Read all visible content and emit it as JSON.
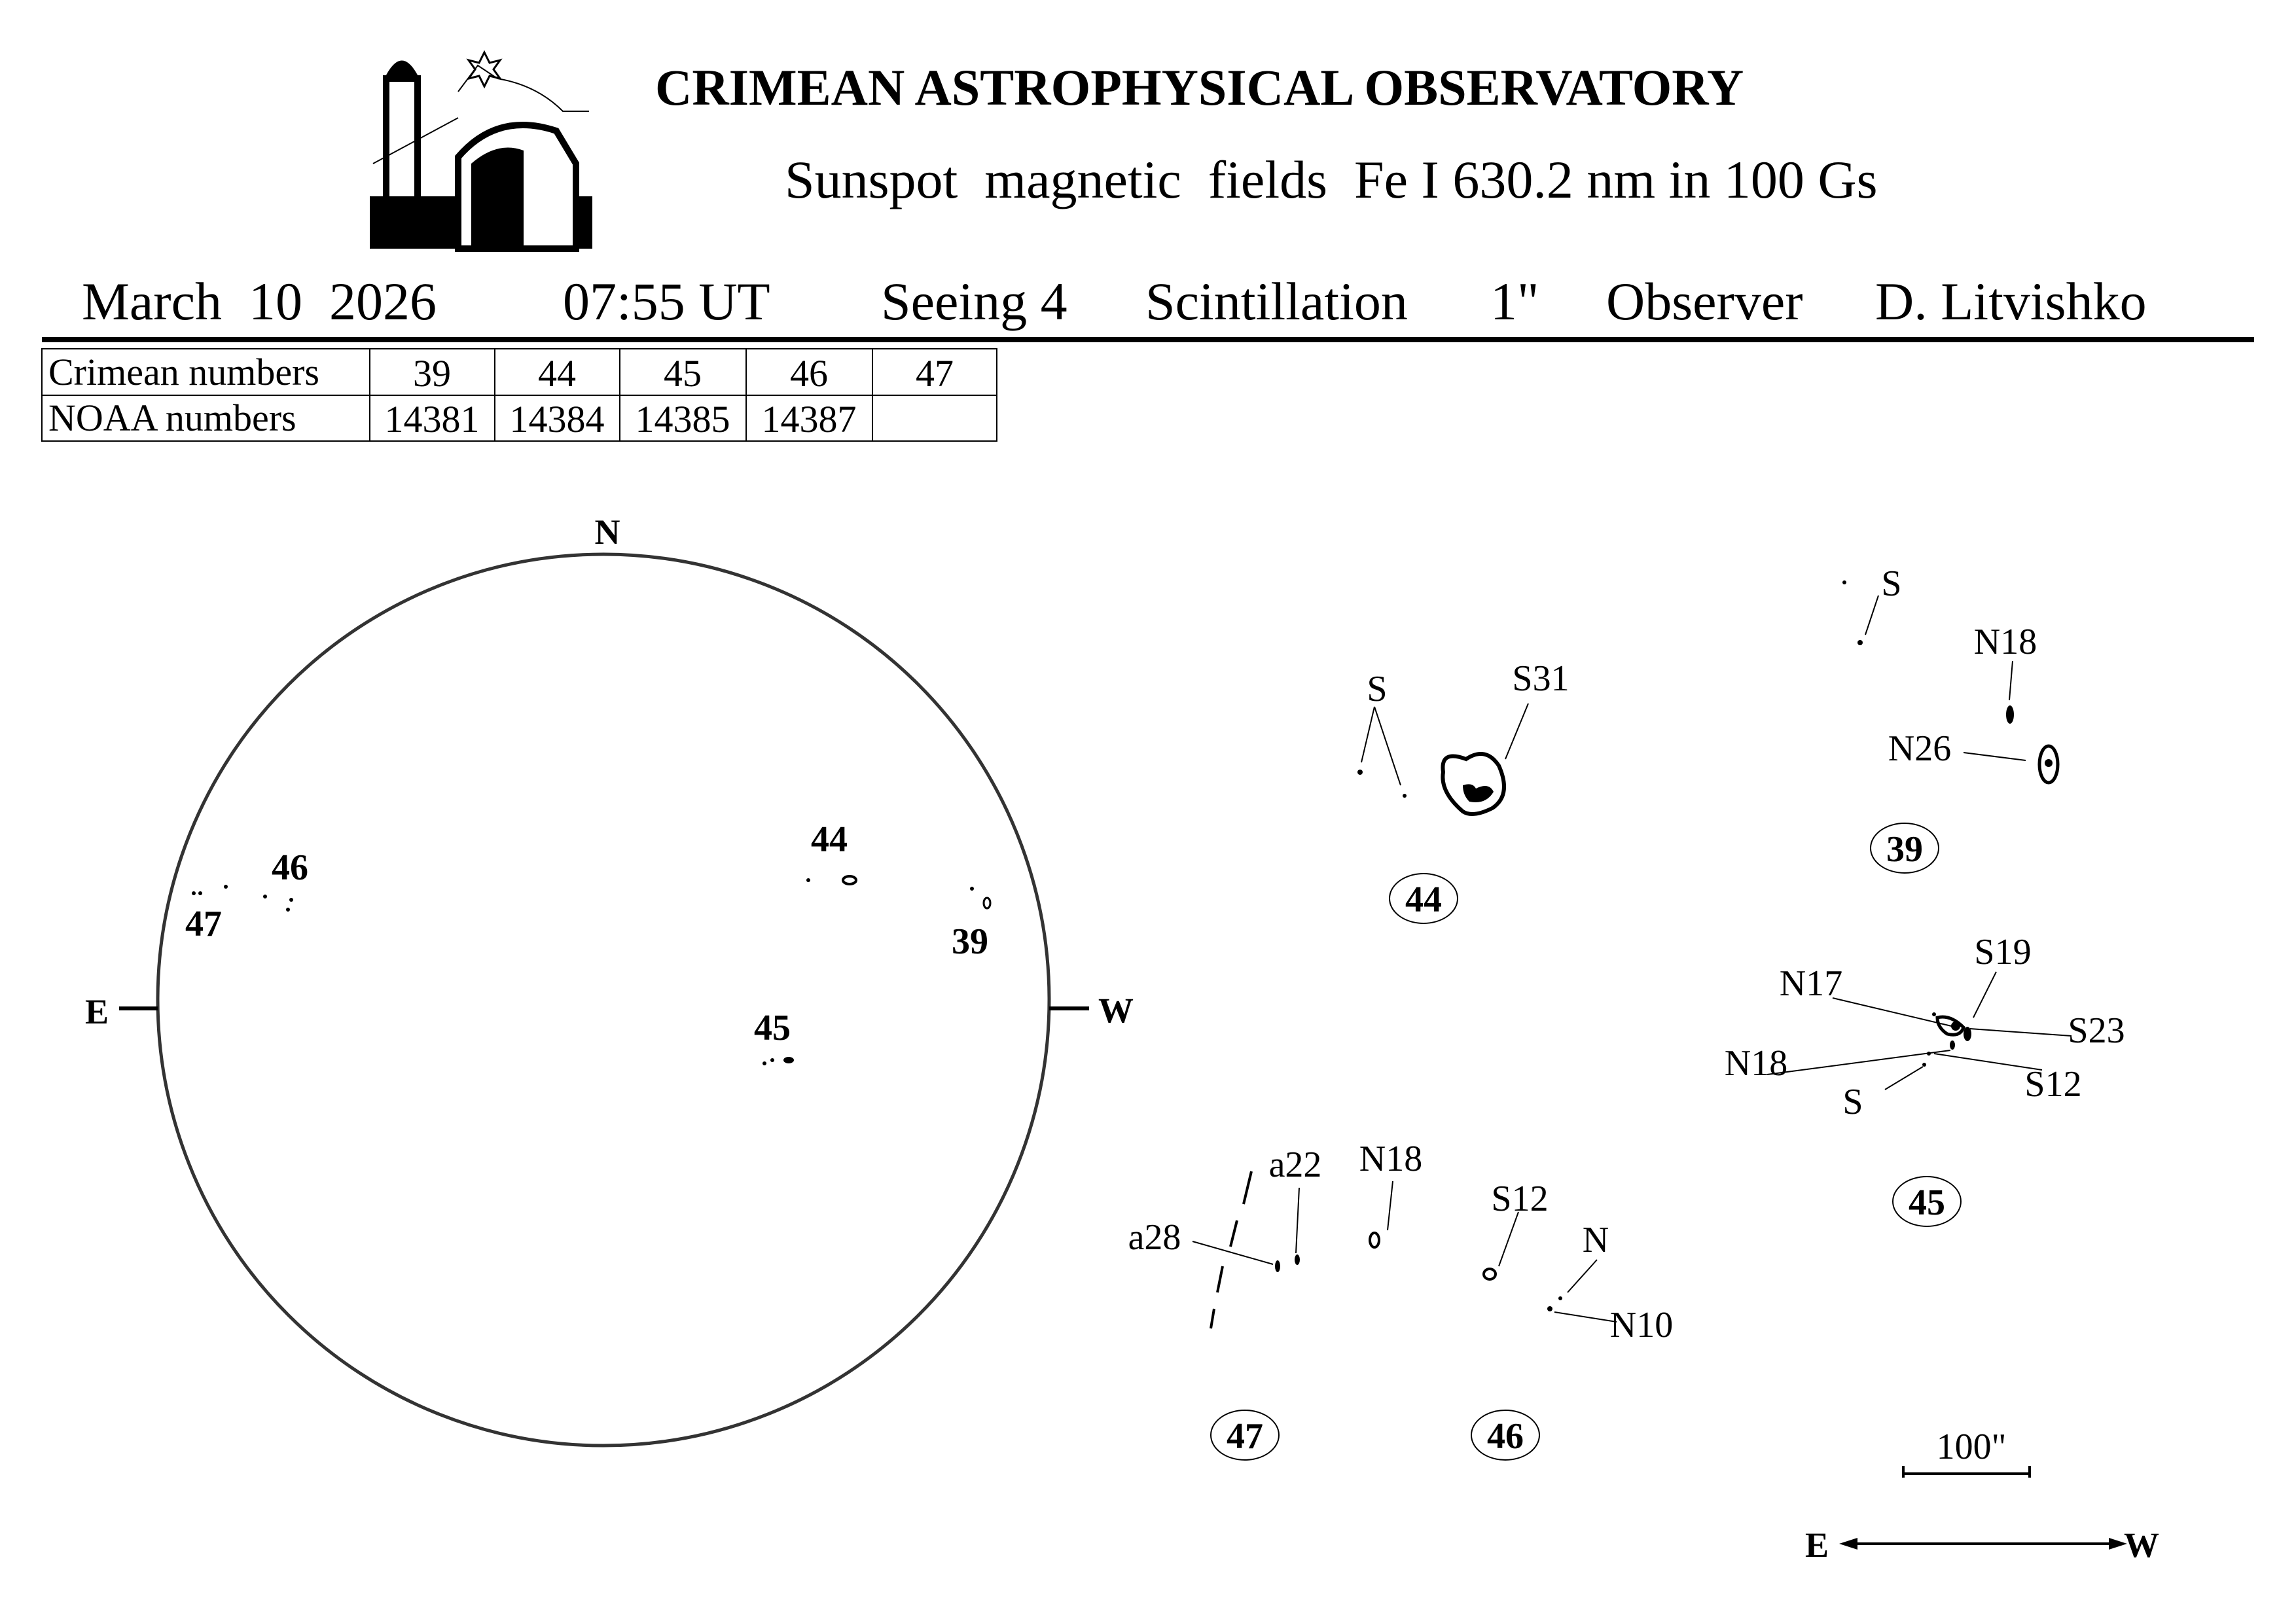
{
  "header": {
    "title": "CRIMEAN ASTROPHYSICAL OBSERVATORY",
    "subtitle": "Sunspot  magnetic  fields  Fe I 630.2 nm in 100 Gs"
  },
  "info": {
    "date": "March  10  2026",
    "time": "07:55 UT",
    "seeing": "Seeing 4",
    "scintillation_label": "Scintillation",
    "scintillation_value": "1\"",
    "observer_label": "Observer",
    "observer_name": "D. Litvishko"
  },
  "table": {
    "row_labels": [
      "Crimean numbers",
      "NOAA numbers"
    ],
    "crimean": [
      "39",
      "44",
      "45",
      "46",
      "47"
    ],
    "noaa": [
      "14381",
      "14384",
      "14385",
      "14387",
      ""
    ]
  },
  "disk": {
    "north": "N",
    "east": "E",
    "west": "W",
    "region_labels": [
      "46",
      "47",
      "44",
      "39",
      "45"
    ]
  },
  "groups": {
    "g44": {
      "id": "44",
      "labels": [
        "S",
        "S31"
      ]
    },
    "g39": {
      "id": "39",
      "labels": [
        "S",
        "N18",
        "N26"
      ]
    },
    "g45": {
      "id": "45",
      "labels": [
        "S19",
        "N17",
        "S23",
        "N18",
        "S12",
        "S"
      ]
    },
    "g47": {
      "id": "47",
      "labels": [
        "a22",
        "a28",
        "N18"
      ]
    },
    "g46": {
      "id": "46",
      "labels": [
        "S12",
        "N",
        "N10"
      ]
    }
  },
  "scale": {
    "label": "100\"",
    "east": "E",
    "west": "W"
  }
}
